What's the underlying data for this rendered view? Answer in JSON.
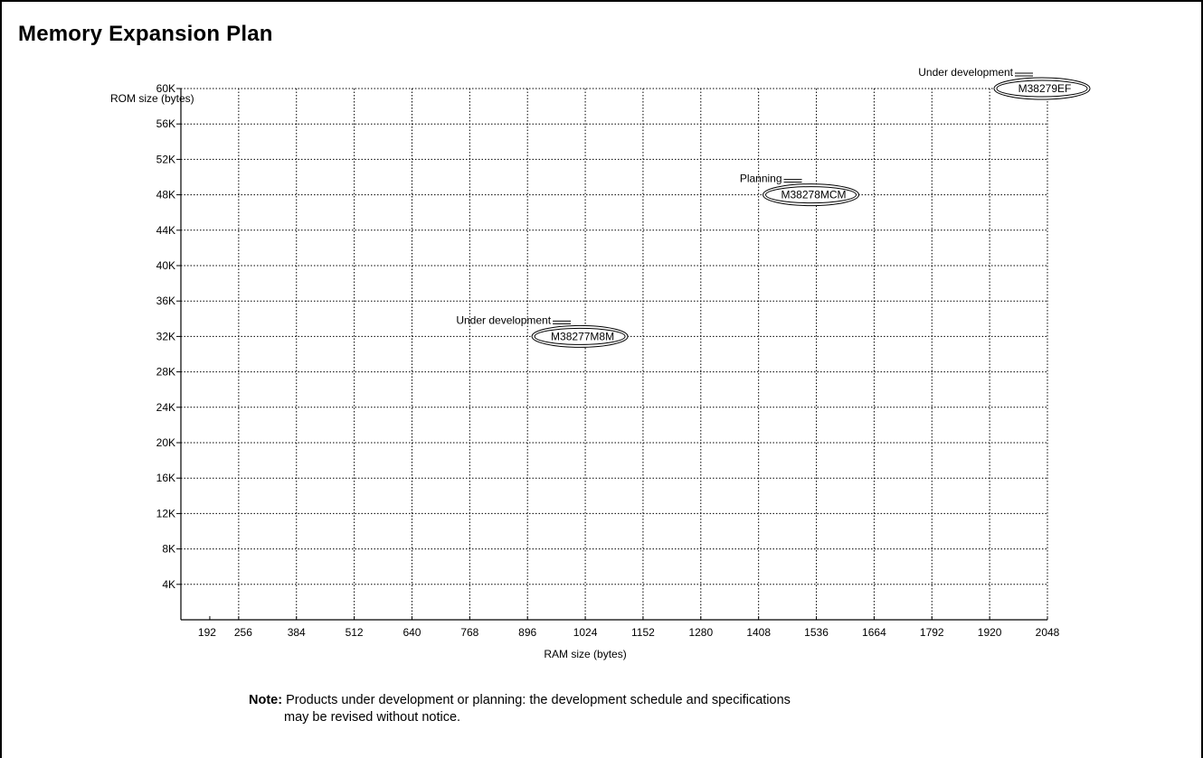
{
  "page": {
    "title": "Memory Expansion Plan"
  },
  "chart_data": {
    "type": "scatter",
    "title": "Memory Expansion Plan",
    "xlabel": "RAM size (bytes)",
    "ylabel": "ROM size (bytes)",
    "x_ticks": [
      192,
      256,
      384,
      512,
      640,
      768,
      896,
      1024,
      1152,
      1280,
      1408,
      1536,
      1664,
      1792,
      1920,
      2048
    ],
    "x_tick_labels": [
      "192",
      "256",
      "384",
      "512",
      "640",
      "768",
      "896",
      "1024",
      "1152",
      "1280",
      "1408",
      "1536",
      "1664",
      "1792",
      "1920",
      "2048"
    ],
    "x_gridlines": [
      256,
      384,
      512,
      640,
      768,
      896,
      1024,
      1152,
      1280,
      1408,
      1536,
      1664,
      1792,
      1920,
      2048
    ],
    "y_ticks": [
      4,
      8,
      12,
      16,
      20,
      24,
      28,
      32,
      36,
      40,
      44,
      48,
      52,
      56,
      60
    ],
    "y_tick_labels": [
      "4K",
      "8K",
      "12K",
      "16K",
      "20K",
      "24K",
      "28K",
      "32K",
      "36K",
      "40K",
      "44K",
      "48K",
      "52K",
      "56K",
      "60K"
    ],
    "xlim": [
      128,
      2048
    ],
    "ylim": [
      0,
      60
    ],
    "grid": true,
    "points": [
      {
        "name": "M38277M8M",
        "status": "Under development",
        "x": 1024,
        "y": 32
      },
      {
        "name": "M38278MCM",
        "status": "Planning",
        "x": 1536,
        "y": 48
      },
      {
        "name": "M38279EF",
        "status": "Under development",
        "x": 2048,
        "y": 60
      }
    ]
  },
  "note": {
    "label": "Note:",
    "line1": "Products under development or planning: the development schedule and specifications",
    "line2": "may be revised without notice."
  }
}
